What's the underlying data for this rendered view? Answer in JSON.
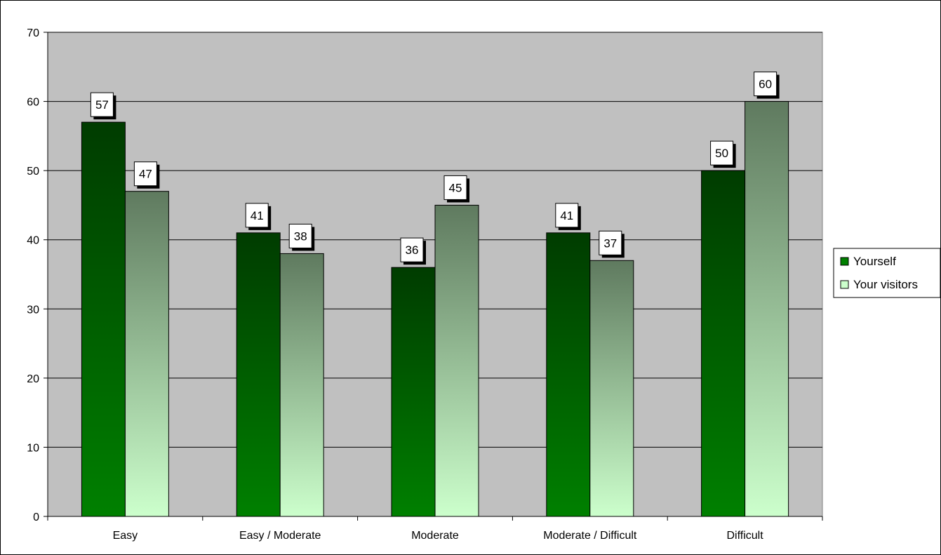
{
  "chart_data": {
    "type": "bar",
    "title": "",
    "xlabel": "",
    "ylabel": "",
    "categories": [
      "Easy",
      "Easy / Moderate",
      "Moderate",
      "Moderate / Difficult",
      "Difficult"
    ],
    "series": [
      {
        "name": "Yourself",
        "values": [
          57,
          41,
          36,
          41,
          50
        ],
        "color_dark": "#003c00",
        "color_light": "#008000"
      },
      {
        "name": "Your visitors",
        "values": [
          47,
          38,
          45,
          37,
          60
        ],
        "color_dark": "#5f7a5f",
        "color_light": "#ccffcc"
      }
    ],
    "ylim": [
      0,
      70
    ],
    "yticks": [
      0,
      10,
      20,
      30,
      40,
      50,
      60,
      70
    ],
    "grid": true,
    "plot_background": "#c0c0c0",
    "legend": "right",
    "data_labels": true
  }
}
